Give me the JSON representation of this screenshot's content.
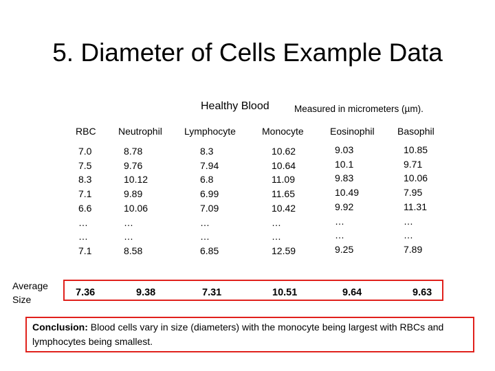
{
  "title": "5. Diameter of Cells Example Data",
  "subtitle": "Healthy Blood",
  "units_note": "Measured in micrometers (µm).",
  "columns": [
    {
      "header": "RBC",
      "values": [
        "7.0",
        "7.5",
        "8.3",
        "7.1",
        "6.6",
        "…",
        "…",
        "7.1"
      ],
      "average": "7.36"
    },
    {
      "header": "Neutrophil",
      "values": [
        "8.78",
        "9.76",
        "10.12",
        "9.89",
        "10.06",
        "…",
        "…",
        "8.58"
      ],
      "average": "9.38"
    },
    {
      "header": "Lymphocyte",
      "values": [
        "8.3",
        "7.94",
        "6.8",
        "6.99",
        "7.09",
        "…",
        "…",
        "6.85"
      ],
      "average": "7.31"
    },
    {
      "header": "Monocyte",
      "values": [
        "10.62",
        "10.64",
        "11.09",
        "11.65",
        "10.42",
        "…",
        "…",
        "12.59"
      ],
      "average": "10.51"
    },
    {
      "header": "Eosinophil",
      "values": [
        "9.03",
        "10.1",
        "9.83",
        "10.49",
        "9.92",
        "…",
        "…",
        "9.25"
      ],
      "average": "9.64"
    },
    {
      "header": "Basophil",
      "values": [
        "10.85",
        "9.71",
        "10.06",
        "7.95",
        "11.31",
        "…",
        "…",
        "7.89"
      ],
      "average": "9.63"
    }
  ],
  "average_label": "Average Size",
  "conclusion": {
    "label": "Conclusion:",
    "text": " Blood cells vary in size (diameters) with the monocyte being largest with RBCs and lymphocytes being smallest."
  },
  "colors": {
    "highlight_border": "#e0201b"
  }
}
